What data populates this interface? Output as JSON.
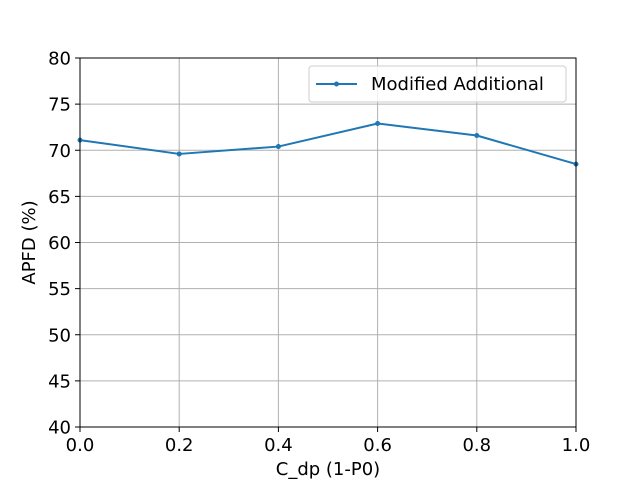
{
  "chart_data": {
    "type": "line",
    "title": "",
    "xlabel": "C_dp (1-P0)",
    "ylabel": "APFD (%)",
    "xlim": [
      0.0,
      1.0
    ],
    "ylim": [
      40,
      80
    ],
    "xticks": [
      "0.0",
      "0.2",
      "0.4",
      "0.6",
      "0.8",
      "1.0"
    ],
    "yticks": [
      "40",
      "45",
      "50",
      "55",
      "60",
      "65",
      "70",
      "75",
      "80"
    ],
    "grid": true,
    "legend_position": "top-right",
    "x": [
      0.0,
      0.2,
      0.4,
      0.6,
      0.8,
      1.0
    ],
    "series": [
      {
        "name": "Modified Additional",
        "color": "#1f77b4",
        "marker": "point",
        "values": [
          71.1,
          69.6,
          70.4,
          72.9,
          71.6,
          68.5
        ]
      }
    ]
  }
}
